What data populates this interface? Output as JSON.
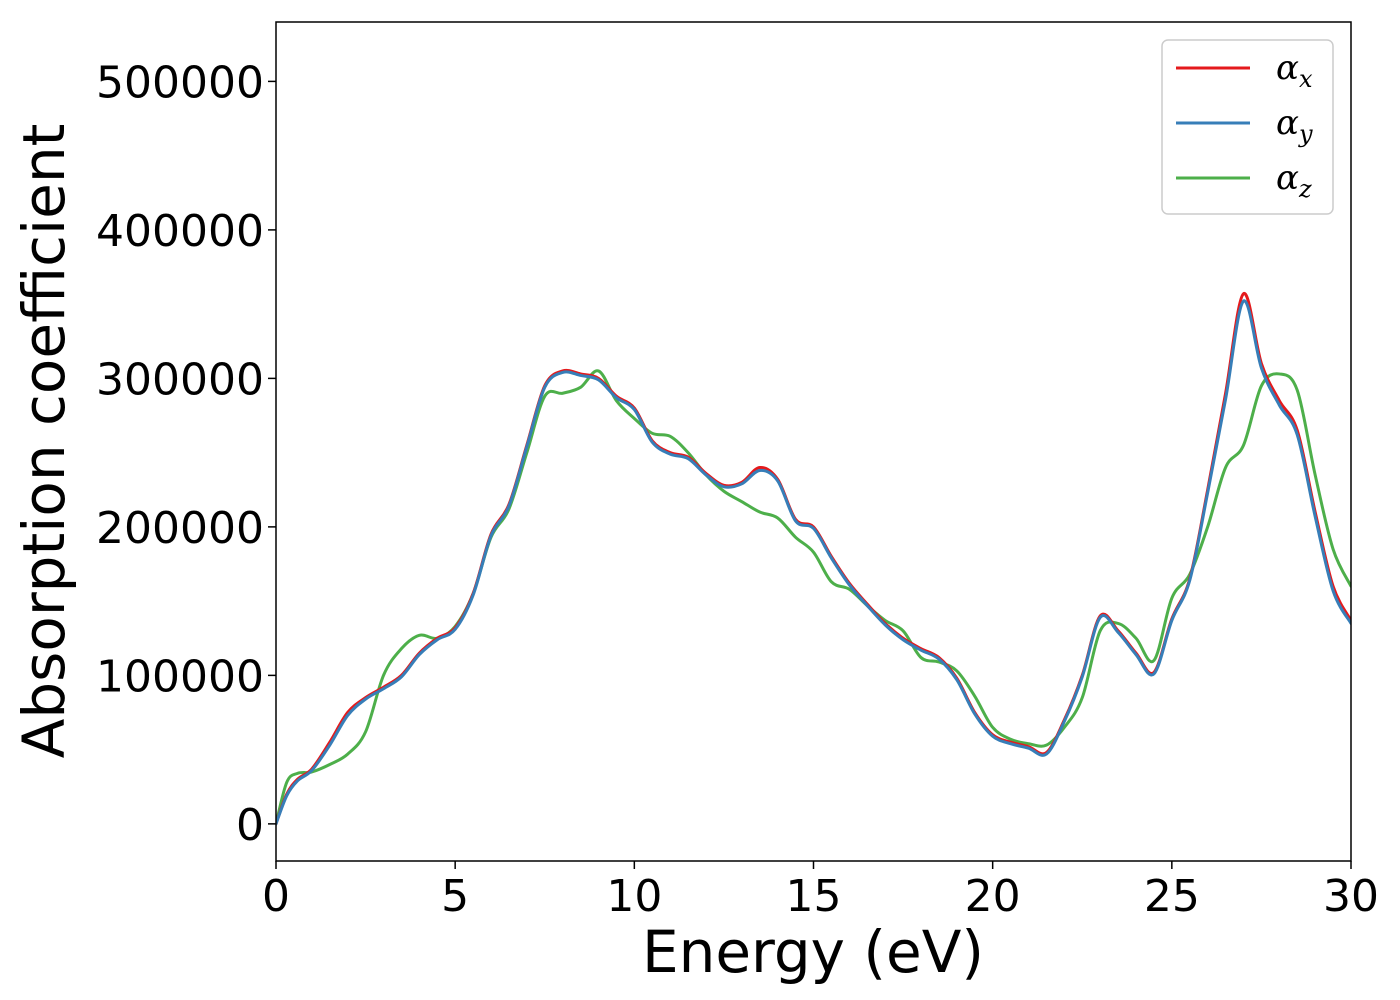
{
  "chart_data": {
    "type": "line",
    "xlabel": "Energy (eV)",
    "ylabel": "Absorption coefficient",
    "xlim": [
      0,
      30
    ],
    "ylim": [
      -25000,
      540000
    ],
    "x_ticks": [
      0,
      5,
      10,
      15,
      20,
      25,
      30
    ],
    "y_ticks": [
      0,
      100000,
      200000,
      300000,
      400000,
      500000
    ],
    "grid": false,
    "legend_position": "top-right",
    "series": [
      {
        "name": "α",
        "subscript": "x",
        "color": "#e41a1c",
        "x": [
          0,
          0.3,
          0.6,
          1,
          1.5,
          2,
          2.5,
          3,
          3.5,
          4,
          4.5,
          5,
          5.5,
          6,
          6.5,
          7,
          7.5,
          8,
          8.5,
          9,
          9.5,
          10,
          10.5,
          11,
          11.5,
          12,
          12.5,
          13,
          13.5,
          14,
          14.5,
          15,
          15.5,
          16,
          16.5,
          17,
          17.5,
          18,
          18.5,
          19,
          19.5,
          20,
          20.5,
          21,
          21.5,
          22,
          22.5,
          23,
          23.5,
          24,
          24.5,
          25,
          25.5,
          26,
          26.5,
          27,
          27.5,
          28,
          28.5,
          29,
          29.5,
          30
        ],
        "y": [
          0,
          20000,
          30000,
          37000,
          55000,
          75000,
          85000,
          92000,
          100000,
          115000,
          125000,
          132000,
          155000,
          195000,
          215000,
          255000,
          295000,
          305000,
          303000,
          300000,
          288000,
          280000,
          258000,
          250000,
          247000,
          236000,
          228000,
          230000,
          240000,
          232000,
          205000,
          200000,
          180000,
          162000,
          148000,
          135000,
          125000,
          118000,
          112000,
          98000,
          75000,
          60000,
          55000,
          52000,
          48000,
          70000,
          100000,
          140000,
          130000,
          115000,
          102000,
          138000,
          165000,
          225000,
          290000,
          357000,
          310000,
          285000,
          265000,
          210000,
          160000,
          137000
        ]
      },
      {
        "name": "α",
        "subscript": "y",
        "color": "#377eb8",
        "x": [
          0,
          0.3,
          0.6,
          1,
          1.5,
          2,
          2.5,
          3,
          3.5,
          4,
          4.5,
          5,
          5.5,
          6,
          6.5,
          7,
          7.5,
          8,
          8.5,
          9,
          9.5,
          10,
          10.5,
          11,
          11.5,
          12,
          12.5,
          13,
          13.5,
          14,
          14.5,
          15,
          15.5,
          16,
          16.5,
          17,
          17.5,
          18,
          18.5,
          19,
          19.5,
          20,
          20.5,
          21,
          21.5,
          22,
          22.5,
          23,
          23.5,
          24,
          24.5,
          25,
          25.5,
          26,
          26.5,
          27,
          27.5,
          28,
          28.5,
          29,
          29.5,
          30
        ],
        "y": [
          0,
          19000,
          29000,
          36000,
          53000,
          73000,
          84000,
          91000,
          99000,
          114000,
          124000,
          131000,
          154000,
          194000,
          214000,
          254000,
          294000,
          304000,
          302000,
          299000,
          287000,
          279000,
          257000,
          249000,
          246000,
          235000,
          227000,
          229000,
          238000,
          231000,
          204000,
          199000,
          179000,
          161000,
          147000,
          134000,
          124000,
          117000,
          111000,
          97000,
          74000,
          59000,
          54000,
          51000,
          47000,
          69000,
          99000,
          139000,
          129000,
          114000,
          101000,
          137000,
          164000,
          223000,
          286000,
          352000,
          307000,
          282000,
          262000,
          207000,
          157000,
          135000
        ]
      },
      {
        "name": "α",
        "subscript": "z",
        "color": "#4daf4a",
        "x": [
          0,
          0.3,
          0.6,
          1,
          1.5,
          2,
          2.5,
          3,
          3.5,
          4,
          4.5,
          5,
          5.5,
          6,
          6.5,
          7,
          7.5,
          8,
          8.5,
          9,
          9.5,
          10,
          10.5,
          11,
          11.5,
          12,
          12.5,
          13,
          13.5,
          14,
          14.5,
          15,
          15.5,
          16,
          16.5,
          17,
          17.5,
          18,
          18.5,
          19,
          19.5,
          20,
          20.5,
          21,
          21.5,
          22,
          22.5,
          23,
          23.5,
          24,
          24.5,
          25,
          25.5,
          26,
          26.5,
          27,
          27.5,
          28,
          28.5,
          29,
          29.5,
          30
        ],
        "y": [
          0,
          28000,
          34000,
          35000,
          40000,
          47000,
          62000,
          100000,
          118000,
          127000,
          125000,
          133000,
          155000,
          193000,
          212000,
          250000,
          288000,
          290000,
          294000,
          305000,
          285000,
          273000,
          263000,
          261000,
          250000,
          235000,
          224000,
          217000,
          210000,
          206000,
          193000,
          183000,
          163000,
          158000,
          147000,
          137000,
          130000,
          112000,
          109000,
          103000,
          86000,
          65000,
          57000,
          54000,
          53000,
          65000,
          85000,
          130000,
          135000,
          125000,
          110000,
          152000,
          168000,
          200000,
          240000,
          255000,
          295000,
          303000,
          292000,
          235000,
          185000,
          160000
        ]
      }
    ]
  }
}
